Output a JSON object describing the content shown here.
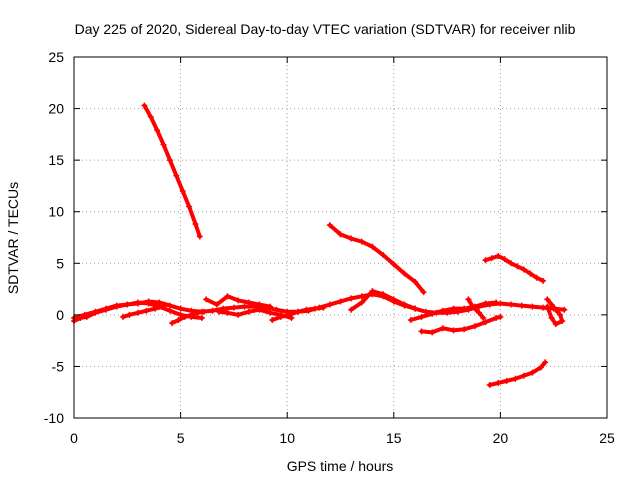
{
  "chart_data": {
    "type": "scatter",
    "title": "Day 225 of 2020, Sidereal Day-to-day VTEC variation (SDTVAR) for receiver nlib",
    "xlabel": "GPS time / hours",
    "ylabel": "SDTVAR / TECUs",
    "xlim": [
      0,
      25
    ],
    "ylim": [
      -10,
      25
    ],
    "xticks": [
      0,
      5,
      10,
      15,
      20,
      25
    ],
    "yticks": [
      -10,
      -5,
      0,
      5,
      10,
      15,
      20,
      25
    ],
    "grid": true,
    "marker": "plus",
    "color": "#ff0000",
    "series": [
      {
        "x": [
          0.0,
          0.5,
          1.0,
          1.5,
          2.0,
          2.5,
          3.0,
          3.5,
          4.0,
          4.5,
          5.0,
          5.5,
          6.0,
          6.5,
          7.0,
          7.5,
          8.0,
          8.5,
          9.0,
          9.5,
          10.0,
          10.5,
          11.0,
          11.5,
          12.0,
          12.5,
          13.0,
          13.5,
          14.0,
          14.5,
          15.0,
          15.5,
          16.0,
          16.5,
          17.0,
          17.5,
          18.0,
          18.5,
          19.0,
          19.5,
          20.0,
          20.5,
          21.0,
          21.5,
          22.0,
          22.5,
          23.0
        ],
        "y": [
          -0.3,
          0.0,
          0.3,
          0.6,
          0.9,
          1.0,
          1.1,
          1.3,
          1.2,
          0.9,
          0.6,
          0.4,
          0.3,
          0.4,
          0.6,
          0.7,
          0.8,
          0.8,
          0.7,
          0.5,
          0.3,
          0.3,
          0.4,
          0.7,
          1.0,
          1.3,
          1.6,
          1.8,
          2.0,
          1.8,
          1.3,
          0.9,
          0.6,
          0.3,
          0.2,
          0.2,
          0.3,
          0.5,
          0.8,
          1.0,
          1.1,
          1.0,
          0.9,
          0.8,
          0.7,
          0.6,
          0.5
        ]
      },
      {
        "x": [
          0.0,
          0.3,
          0.6,
          1.0,
          1.5,
          2.0,
          2.5,
          3.0,
          3.5,
          4.0,
          4.5,
          5.0,
          5.5,
          6.0
        ],
        "y": [
          -0.6,
          -0.3,
          -0.2,
          0.2,
          0.5,
          0.8,
          1.0,
          1.2,
          1.1,
          0.8,
          0.4,
          0.0,
          -0.2,
          -0.3
        ]
      },
      {
        "x": [
          2.3,
          2.6,
          3.0,
          3.4,
          3.8,
          4.2
        ],
        "y": [
          -0.2,
          0.0,
          0.2,
          0.4,
          0.6,
          0.8
        ]
      },
      {
        "x": [
          4.6,
          4.9,
          5.2,
          5.5,
          5.8,
          6.1
        ],
        "y": [
          -0.8,
          -0.5,
          -0.2,
          0.0,
          0.2,
          0.3
        ]
      },
      {
        "x": [
          6.2,
          6.7,
          7.2,
          7.7,
          8.2,
          8.7,
          9.2
        ],
        "y": [
          1.5,
          1.0,
          1.8,
          1.4,
          1.2,
          1.0,
          0.8
        ]
      },
      {
        "x": [
          6.8,
          7.2,
          7.7,
          8.2,
          8.7,
          9.2,
          9.7,
          10.2
        ],
        "y": [
          0.3,
          0.2,
          0.0,
          0.3,
          0.5,
          0.2,
          0.0,
          -0.3
        ]
      },
      {
        "x": [
          9.3,
          9.7,
          10.1,
          10.5,
          10.9,
          11.3,
          11.7
        ],
        "y": [
          -0.5,
          -0.2,
          0.0,
          0.3,
          0.5,
          0.6,
          0.7
        ]
      },
      {
        "x": [
          13.0,
          13.5,
          14.0,
          14.5,
          15.0,
          15.5,
          16.0
        ],
        "y": [
          0.5,
          1.2,
          2.3,
          2.0,
          1.5,
          1.0,
          0.6
        ]
      },
      {
        "x": [
          15.8,
          16.3,
          16.8,
          17.3,
          17.8,
          18.3,
          18.8,
          19.3,
          19.8
        ],
        "y": [
          -0.5,
          -0.2,
          0.1,
          0.4,
          0.6,
          0.6,
          0.8,
          1.1,
          1.2
        ]
      },
      {
        "x": [
          3.3,
          3.6,
          3.9,
          4.2,
          4.5,
          4.8,
          5.1,
          5.4,
          5.7,
          5.9
        ],
        "y": [
          20.3,
          19.2,
          17.9,
          16.5,
          15.0,
          13.5,
          12.0,
          10.5,
          8.8,
          7.6
        ]
      },
      {
        "x": [
          12.0,
          12.5,
          13.0,
          13.5,
          14.0,
          14.5,
          15.0,
          15.5,
          16.0,
          16.4
        ],
        "y": [
          8.7,
          7.8,
          7.4,
          7.1,
          6.6,
          5.8,
          4.9,
          4.0,
          3.2,
          2.2
        ]
      },
      {
        "x": [
          19.3,
          19.6,
          19.9,
          20.2,
          20.5,
          20.8,
          21.1,
          21.4,
          21.7,
          22.0
        ],
        "y": [
          5.3,
          5.5,
          5.7,
          5.4,
          5.0,
          4.7,
          4.4,
          4.0,
          3.6,
          3.3
        ]
      },
      {
        "x": [
          16.3,
          16.8,
          17.3,
          17.8,
          18.3,
          18.8,
          19.3,
          19.8,
          20.0
        ],
        "y": [
          -1.6,
          -1.7,
          -1.3,
          -1.5,
          -1.4,
          -1.1,
          -0.7,
          -0.3,
          -0.2
        ]
      },
      {
        "x": [
          19.5,
          19.9,
          20.3,
          20.7,
          21.1,
          21.5,
          21.9,
          22.1
        ],
        "y": [
          -6.8,
          -6.6,
          -6.4,
          -6.2,
          -5.9,
          -5.6,
          -5.1,
          -4.6
        ]
      },
      {
        "x": [
          18.5,
          18.7,
          19.0,
          19.2
        ],
        "y": [
          1.5,
          0.8,
          0.2,
          -0.3
        ]
      },
      {
        "x": [
          22.2,
          22.4,
          22.6,
          22.8,
          22.9,
          22.6,
          22.4,
          22.2
        ],
        "y": [
          1.5,
          1.0,
          0.5,
          0.0,
          -0.6,
          -0.9,
          -0.3,
          0.8
        ]
      }
    ]
  }
}
